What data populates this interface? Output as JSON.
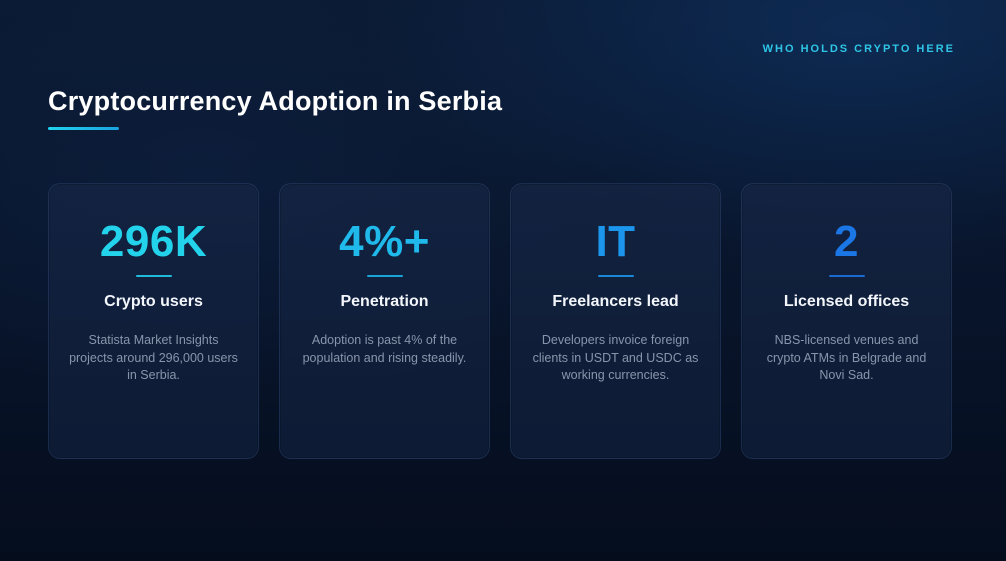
{
  "slide": {
    "eyebrow": "WHO HOLDS CRYPTO HERE",
    "title": "Cryptocurrency Adoption in Serbia",
    "accent_color": "#22d3ee",
    "background_color": "#08142a"
  },
  "cards": [
    {
      "stat": "296K",
      "title": "Crypto users",
      "description": "Statista Market Insights projects around 296,000 users in Serbia.",
      "stat_color": "#23d3ec"
    },
    {
      "stat": "4%+",
      "title": "Penetration",
      "description": "Adoption is past 4% of the population and rising steadily.",
      "stat_color": "#1fb9ec"
    },
    {
      "stat": "IT",
      "title": "Freelancers lead",
      "description": "Developers invoice foreign clients in USDT and USDC as working currencies.",
      "stat_color": "#1b96ec"
    },
    {
      "stat": "2",
      "title": "Licensed offices",
      "description": "NBS-licensed venues and crypto ATMs in Belgrade and Novi Sad.",
      "stat_color": "#1b76e6"
    }
  ]
}
